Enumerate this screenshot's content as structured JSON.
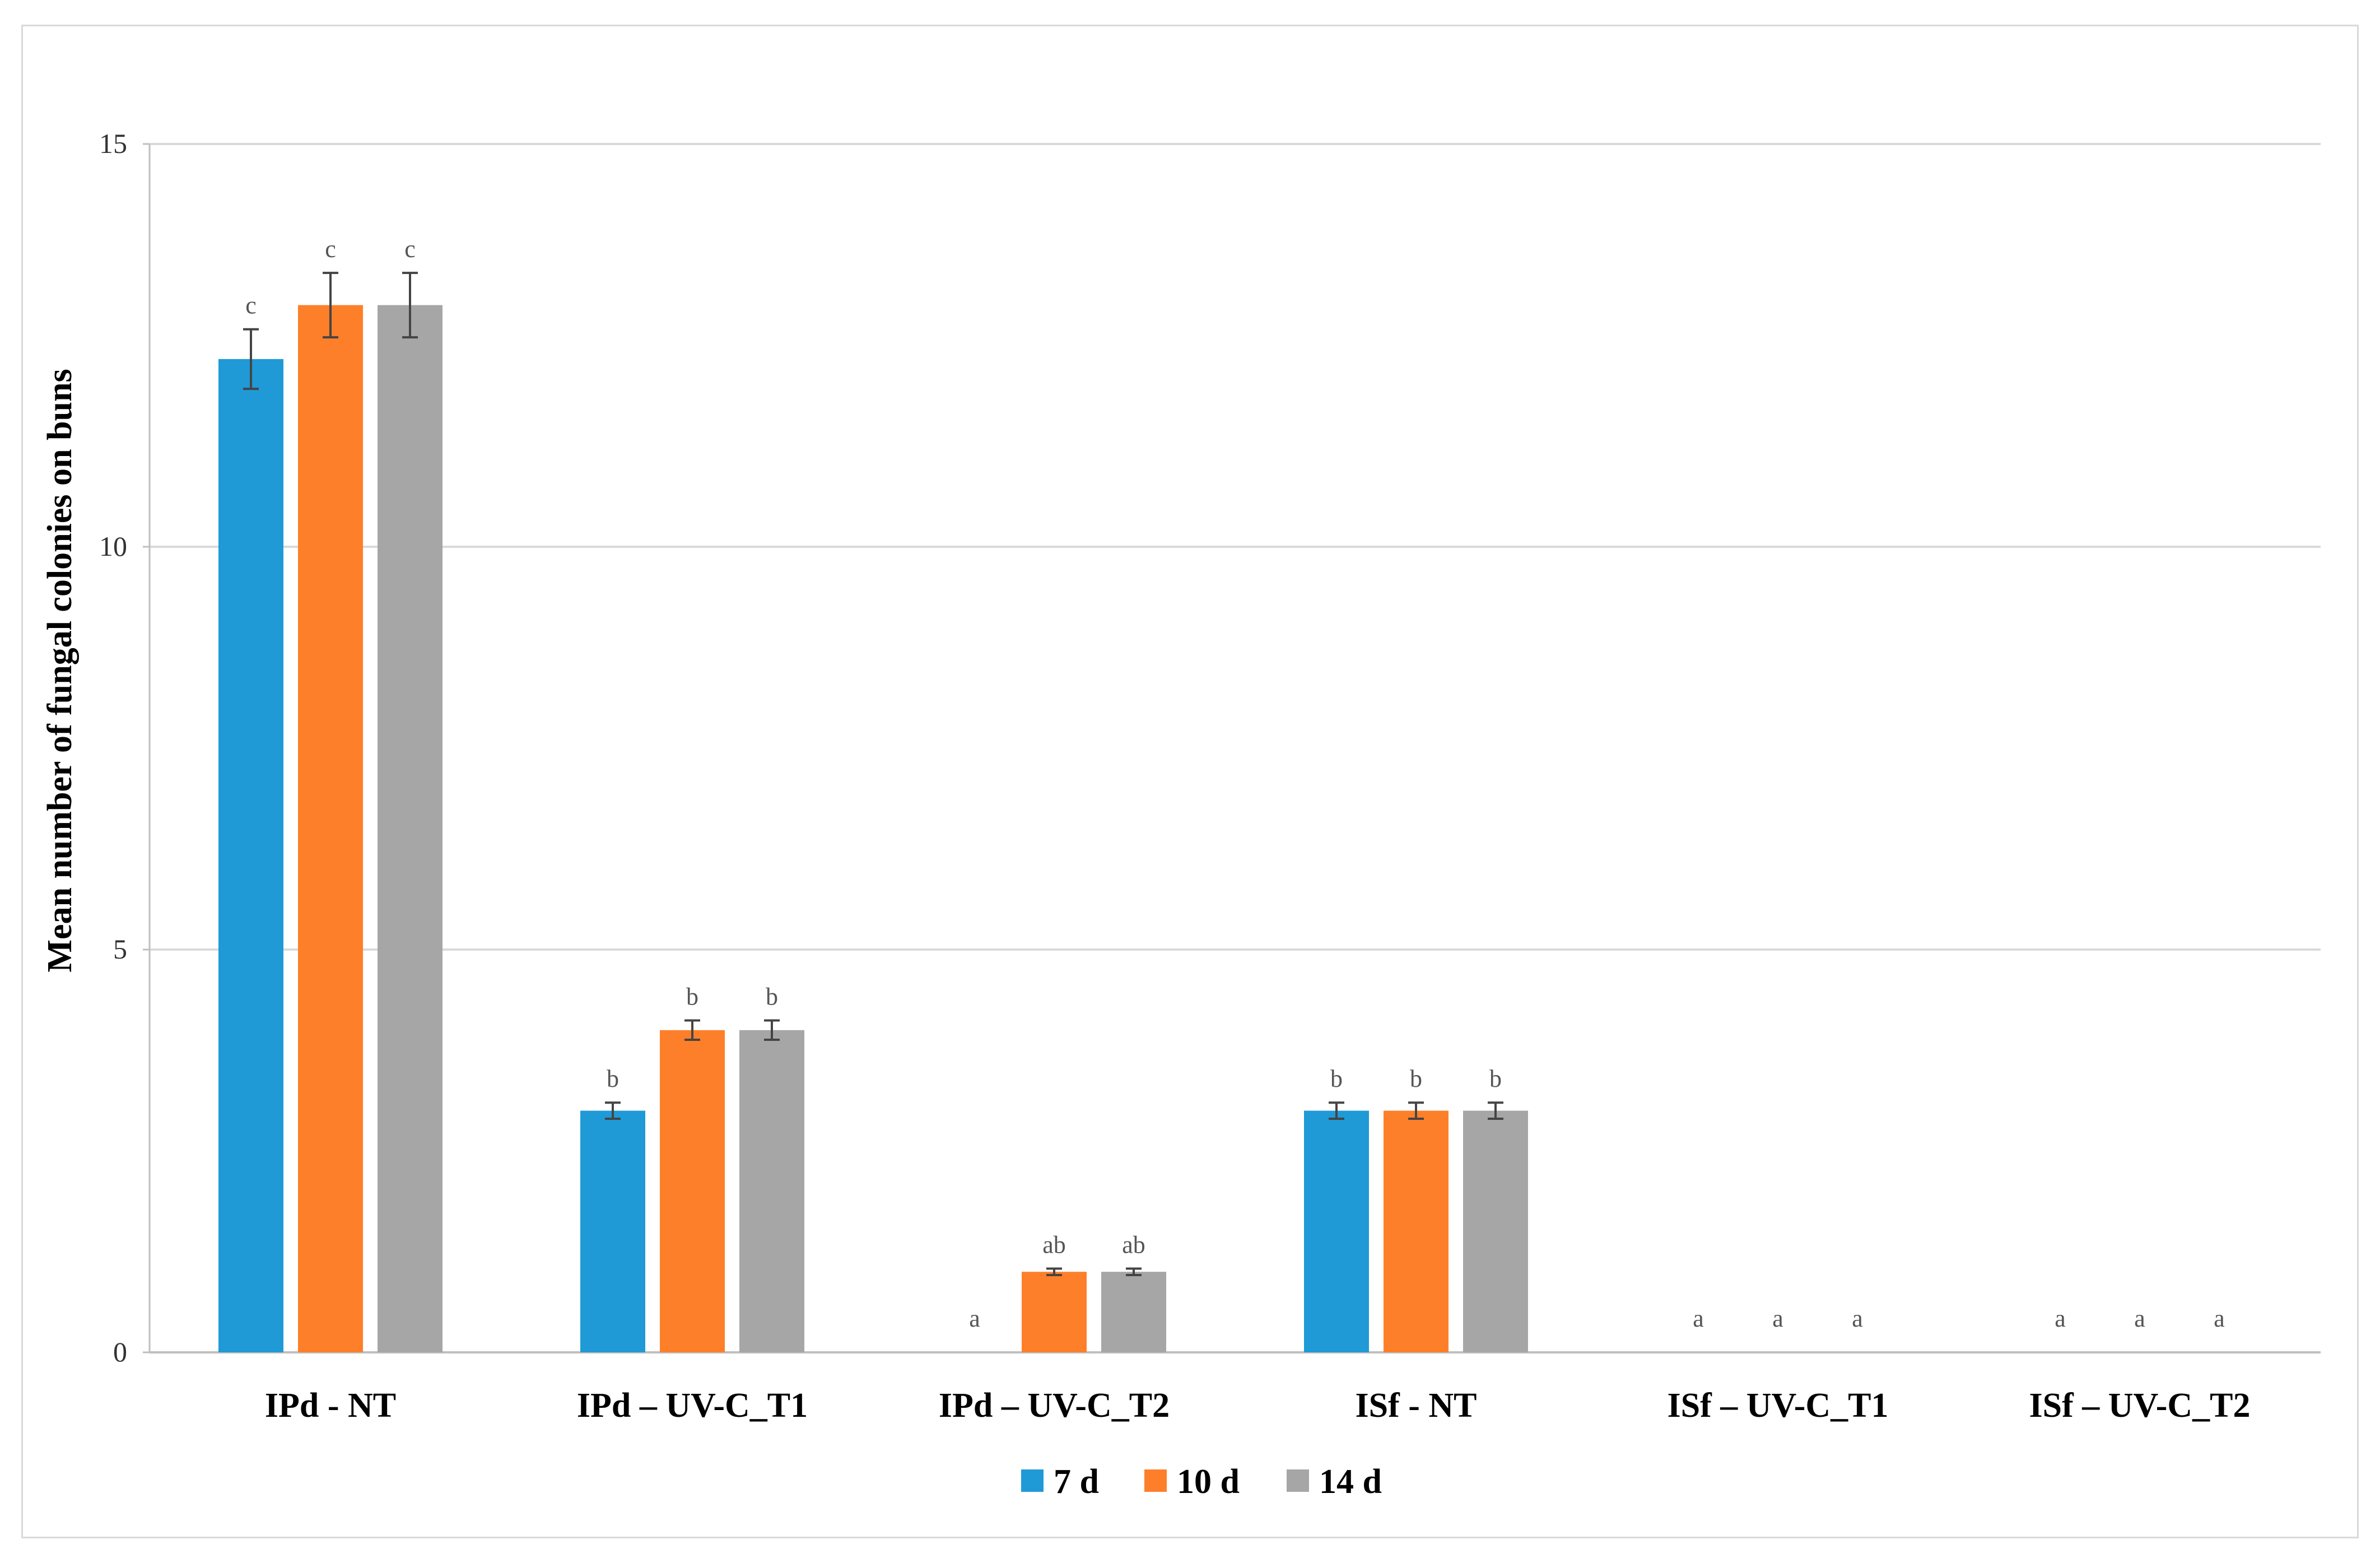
{
  "chart_data": {
    "type": "bar",
    "title": "",
    "xlabel": "",
    "ylabel": "Mean number of fungal colonies on buns",
    "ylim": [
      0,
      15
    ],
    "yticks": [
      0,
      5,
      10,
      15
    ],
    "grid": true,
    "legend_position": "bottom",
    "categories": [
      "IPd - NT",
      "IPd – UV-C_T1",
      "IPd – UV-C_T2",
      "ISf - NT",
      "ISf – UV-C_T1",
      "ISf – UV-C_T2"
    ],
    "series": [
      {
        "name": "7 d",
        "color": "#1f9ad6",
        "values": [
          12.33,
          3,
          0,
          3,
          0,
          0
        ],
        "errors": [
          0.37,
          0.1,
          0,
          0.1,
          0,
          0
        ],
        "labels": [
          "c",
          "b",
          "a",
          "b",
          "a",
          "a"
        ]
      },
      {
        "name": "10 d",
        "color": "#fe7f2a",
        "values": [
          13,
          4,
          1,
          3,
          0,
          0
        ],
        "errors": [
          0.4,
          0.12,
          0.04,
          0.1,
          0,
          0
        ],
        "labels": [
          "c",
          "b",
          "ab",
          "b",
          "a",
          "a"
        ]
      },
      {
        "name": "14 d",
        "color": "#a6a6a6",
        "values": [
          13,
          4,
          1,
          3,
          0,
          0
        ],
        "errors": [
          0.4,
          0.12,
          0.04,
          0.1,
          0,
          0
        ],
        "labels": [
          "c",
          "b",
          "ab",
          "b",
          "a",
          "a"
        ]
      }
    ]
  }
}
